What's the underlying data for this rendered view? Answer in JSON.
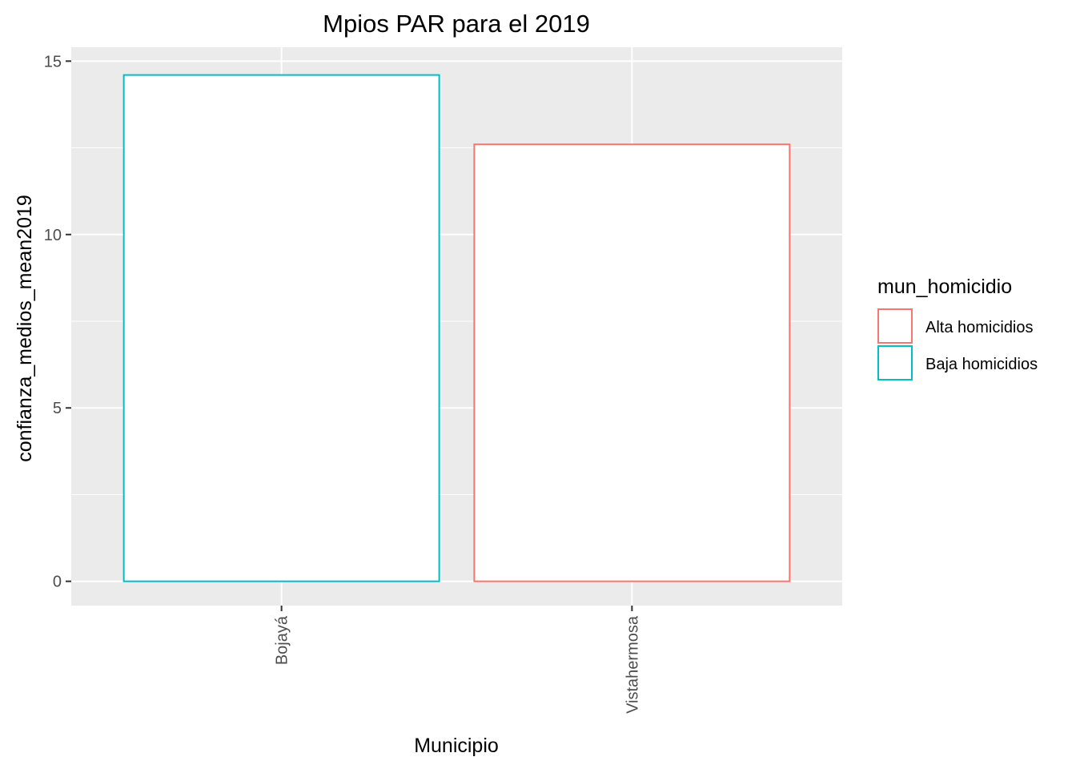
{
  "chart_data": {
    "type": "bar",
    "title": "Mpios PAR para el 2019",
    "xlabel": "Municipio",
    "ylabel": "confianza_medios_mean2019",
    "categories": [
      "Bojayá",
      "Vistahermosa"
    ],
    "values": [
      14.6,
      12.6
    ],
    "groups": [
      "Baja homicidios",
      "Alta homicidios"
    ],
    "ylim": [
      -0.7,
      15.4
    ],
    "yticks": [
      0,
      5,
      10,
      15
    ],
    "ytick_labels": [
      "0",
      "5",
      "10",
      "15"
    ],
    "grid": true,
    "legend": {
      "title": "mun_homicidio",
      "position": "right",
      "entries": [
        {
          "label": "Alta homicidios",
          "color": "#F8766D"
        },
        {
          "label": "Baja homicidios",
          "color": "#00BFC4"
        }
      ]
    },
    "colors": {
      "panel_bg": "#EBEBEB",
      "grid": "#FFFFFF",
      "bar_fill": "#FFFFFF",
      "tick": "#333333"
    }
  }
}
